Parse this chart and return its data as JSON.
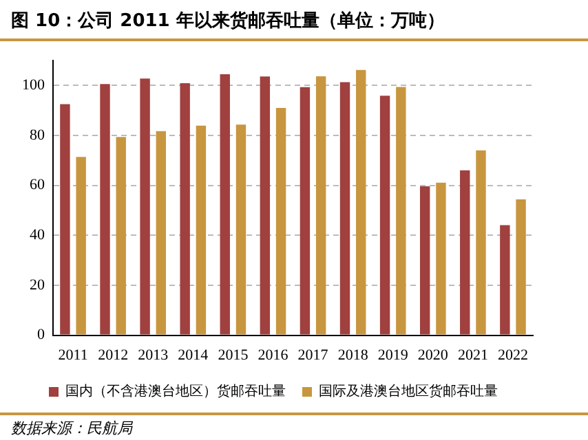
{
  "chart_data": {
    "type": "bar",
    "title": "图 10：公司 2011 年以来货邮吞吐量（单位：万吨）",
    "categories": [
      "2011",
      "2012",
      "2013",
      "2014",
      "2015",
      "2016",
      "2017",
      "2018",
      "2019",
      "2020",
      "2021",
      "2022"
    ],
    "series": [
      {
        "name": "国内（不含港澳台地区）货邮吞吐量",
        "color": "#a0403f",
        "values": [
          92.5,
          100.6,
          102.8,
          100.9,
          104.5,
          103.6,
          99.3,
          101.3,
          95.9,
          59.6,
          66.0,
          44.1
        ]
      },
      {
        "name": "国际及港澳台地区货邮吞吐量",
        "color": "#c8963f",
        "values": [
          71.4,
          79.4,
          81.7,
          83.9,
          84.3,
          91.0,
          103.7,
          106.2,
          99.4,
          61.1,
          74.0,
          54.4
        ]
      }
    ],
    "ylim": [
      0,
      110
    ],
    "yticks": [
      0,
      20,
      40,
      60,
      80,
      100
    ],
    "grid": "y",
    "legend": "bottom",
    "annotations": [
      "数据来源：民航局"
    ]
  }
}
